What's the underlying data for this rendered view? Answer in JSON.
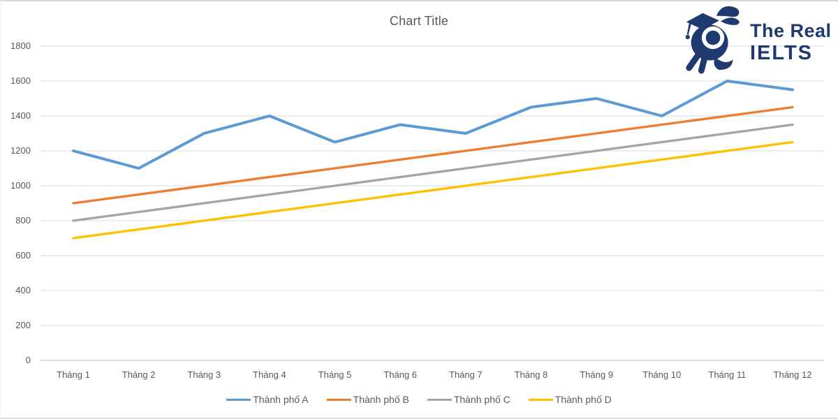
{
  "chart_data": {
    "type": "line",
    "title": "Chart Title",
    "categories": [
      "Tháng 1",
      "Tháng 2",
      "Tháng 3",
      "Tháng 4",
      "Tháng 5",
      "Tháng 6",
      "Tháng 7",
      "Tháng 8",
      "Tháng 9",
      "Tháng 10",
      "Tháng 11",
      "Tháng 12"
    ],
    "series": [
      {
        "name": "Thành phố A",
        "color": "#5B9BD5",
        "values": [
          1200,
          1100,
          1300,
          1400,
          1250,
          1350,
          1300,
          1450,
          1500,
          1400,
          1600,
          1550
        ]
      },
      {
        "name": "Thành phố B",
        "color": "#ED7D31",
        "values": [
          900,
          950,
          1000,
          1050,
          1100,
          1150,
          1200,
          1250,
          1300,
          1350,
          1400,
          1450
        ]
      },
      {
        "name": "Thành phố C",
        "color": "#A5A5A5",
        "values": [
          800,
          850,
          900,
          950,
          1000,
          1050,
          1100,
          1150,
          1200,
          1250,
          1300,
          1350
        ]
      },
      {
        "name": "Thành phố D",
        "color": "#FFC000",
        "values": [
          700,
          750,
          800,
          850,
          900,
          950,
          1000,
          1050,
          1100,
          1150,
          1200,
          1250
        ]
      }
    ],
    "ylim": [
      0,
      1800
    ],
    "ytick_step": 200,
    "grid": true,
    "gridline_color": "#D9D9D9",
    "baseline_color": "#BFBFBF",
    "axis_label_color": "#595959",
    "legend_position": "bottom"
  },
  "brand": {
    "line1": "The Real",
    "line2": "IELTS",
    "color": "#1F3A6E"
  }
}
